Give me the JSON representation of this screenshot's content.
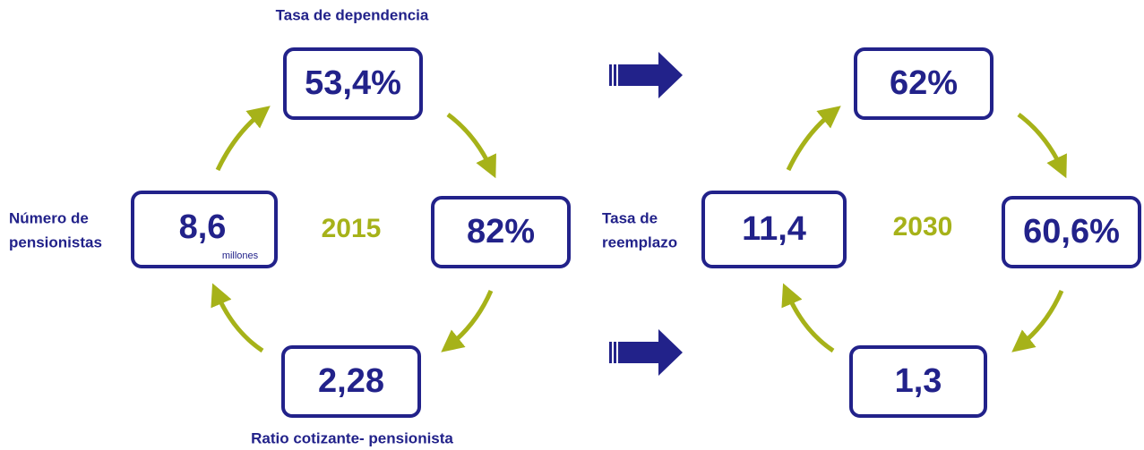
{
  "labels": {
    "top": "Tasa de dependencia",
    "left": [
      "Número de",
      "pensionistas"
    ],
    "bottom": "Ratio cotizante- pensionista",
    "middle": [
      "Tasa de",
      "reemplazo"
    ]
  },
  "cycles": [
    {
      "year": "2015",
      "top": "53,4%",
      "right": "82%",
      "bottom": "2,28",
      "left": "8,6",
      "left_unit": "millones"
    },
    {
      "year": "2030",
      "top": "62%",
      "right": "60,6%",
      "bottom": "1,3",
      "left": "11,4"
    }
  ]
}
